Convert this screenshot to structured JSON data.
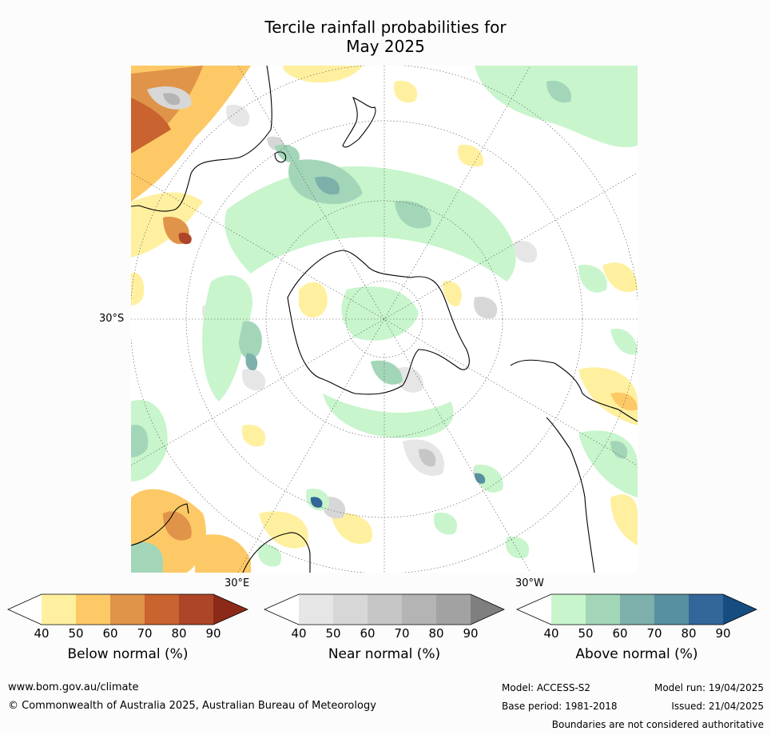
{
  "title_line1": "Tercile rainfall probabilities for",
  "title_line2": "May 2025",
  "map": {
    "lat_label": "30°S",
    "lon_label_left": "30°E",
    "lon_label_right": "30°W"
  },
  "legends": [
    {
      "name": "Below normal (%)",
      "ticks": [
        "40",
        "50",
        "60",
        "70",
        "80",
        "90"
      ],
      "colors": [
        "#ffffff",
        "#fff0a0",
        "#fdc966",
        "#e09449",
        "#c9632f",
        "#ad4528",
        "#8c2a18"
      ]
    },
    {
      "name": "Near normal (%)",
      "ticks": [
        "40",
        "50",
        "60",
        "70",
        "80",
        "90"
      ],
      "colors": [
        "#ffffff",
        "#e6e6e6",
        "#d7d7d7",
        "#c6c6c6",
        "#b4b4b4",
        "#a2a2a2",
        "#7f7f7f"
      ]
    },
    {
      "name": "Above normal (%)",
      "ticks": [
        "40",
        "50",
        "60",
        "70",
        "80",
        "90"
      ],
      "colors": [
        "#ffffff",
        "#c8f5cc",
        "#a3d6b8",
        "#7db0aa",
        "#5791a0",
        "#336699",
        "#164d80"
      ]
    }
  ],
  "footer": {
    "website": "www.bom.gov.au/climate",
    "copyright": "© Commonwealth of Australia 2025, Australian Bureau of Meteorology",
    "model": "Model: ACCESS-S2",
    "base_period": "Base period: 1981-2018",
    "model_run": "Model run: 19/04/2025",
    "issued": "Issued: 21/04/2025",
    "disclaimer": "Boundaries are not considered authoritative"
  }
}
